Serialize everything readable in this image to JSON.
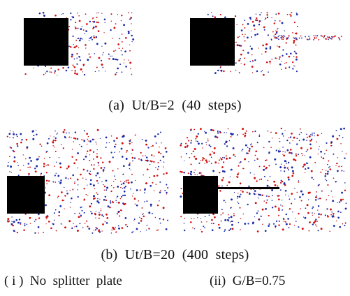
{
  "figure": {
    "caption_a": "(a)  Ut/B=2  (40  steps)",
    "caption_b": "(b)  Ut/B=20  (400  steps)",
    "label_i": "( i )  No  splitter  plate",
    "label_ii": "(ii)  G/B=0.75",
    "colors": {
      "cylinder": "#000000",
      "vortex_positive": "#d01010",
      "vortex_negative": "#1a2aa8",
      "plate": "#000000"
    }
  }
}
